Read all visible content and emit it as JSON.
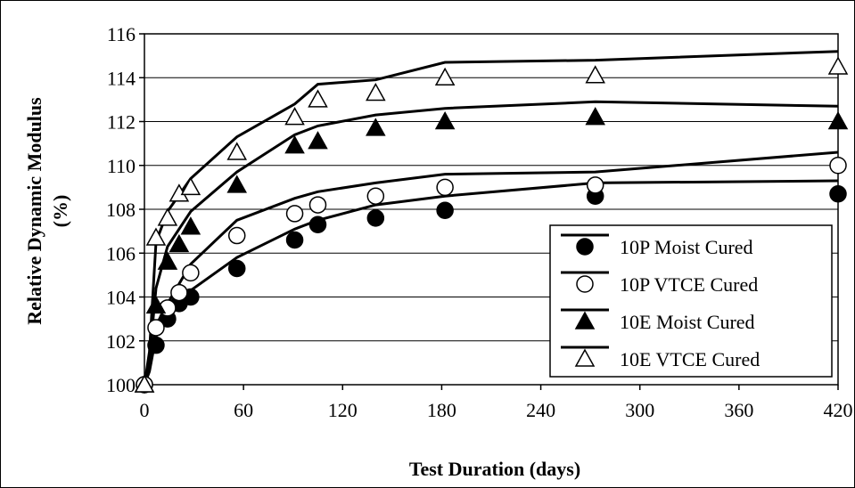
{
  "chart_data": {
    "type": "scatter",
    "title": "",
    "xlabel": "Test Duration (days)",
    "ylabel_line1": "Relative Dynamic Modulus",
    "ylabel_line2": "(%)",
    "xlim": [
      0,
      420
    ],
    "ylim": [
      100,
      116
    ],
    "xticks": [
      0,
      60,
      120,
      180,
      240,
      300,
      360,
      420
    ],
    "yticks": [
      100,
      102,
      104,
      106,
      108,
      110,
      112,
      114,
      116
    ],
    "grid": "horizontal",
    "legend_position": "bottom-right",
    "series": [
      {
        "name": "10P Moist Cured",
        "marker": "circle-filled",
        "points": [
          [
            0,
            100.0
          ],
          [
            7,
            101.8
          ],
          [
            14,
            103.0
          ],
          [
            21,
            103.7
          ],
          [
            28,
            104.0
          ],
          [
            56,
            105.3
          ],
          [
            91,
            106.6
          ],
          [
            105,
            107.3
          ],
          [
            140,
            107.6
          ],
          [
            182,
            107.95
          ],
          [
            273,
            108.6
          ],
          [
            420,
            108.7
          ]
        ],
        "fit": [
          [
            0,
            100.0
          ],
          [
            3,
            100.6
          ],
          [
            7,
            102.2
          ],
          [
            14,
            103.3
          ],
          [
            28,
            104.3
          ],
          [
            56,
            105.8
          ],
          [
            91,
            107.1
          ],
          [
            105,
            107.5
          ],
          [
            140,
            108.2
          ],
          [
            182,
            108.6
          ],
          [
            273,
            109.2
          ],
          [
            420,
            109.3
          ]
        ]
      },
      {
        "name": "10P VTCE Cured",
        "marker": "circle-open",
        "points": [
          [
            0,
            100.0
          ],
          [
            7,
            102.6
          ],
          [
            14,
            103.5
          ],
          [
            21,
            104.2
          ],
          [
            28,
            105.1
          ],
          [
            56,
            106.8
          ],
          [
            91,
            107.8
          ],
          [
            105,
            108.2
          ],
          [
            140,
            108.6
          ],
          [
            182,
            109.0
          ],
          [
            273,
            109.1
          ],
          [
            420,
            110.0
          ]
        ],
        "fit": [
          [
            0,
            100.0
          ],
          [
            3,
            100.9
          ],
          [
            7,
            102.7
          ],
          [
            14,
            103.7
          ],
          [
            28,
            105.5
          ],
          [
            56,
            107.5
          ],
          [
            91,
            108.5
          ],
          [
            105,
            108.8
          ],
          [
            140,
            109.2
          ],
          [
            182,
            109.6
          ],
          [
            273,
            109.7
          ],
          [
            420,
            110.6
          ]
        ]
      },
      {
        "name": "10E Moist Cured",
        "marker": "triangle-filled",
        "points": [
          [
            0,
            100.0
          ],
          [
            7,
            103.6
          ],
          [
            14,
            105.6
          ],
          [
            21,
            106.4
          ],
          [
            28,
            107.2
          ],
          [
            56,
            109.1
          ],
          [
            91,
            110.9
          ],
          [
            105,
            111.1
          ],
          [
            140,
            111.7
          ],
          [
            182,
            112.0
          ],
          [
            273,
            112.2
          ],
          [
            420,
            112.0
          ]
        ],
        "fit": [
          [
            0,
            100.0
          ],
          [
            3,
            101.2
          ],
          [
            7,
            104.4
          ],
          [
            14,
            106.3
          ],
          [
            28,
            107.9
          ],
          [
            56,
            109.7
          ],
          [
            91,
            111.4
          ],
          [
            105,
            111.8
          ],
          [
            140,
            112.3
          ],
          [
            182,
            112.6
          ],
          [
            273,
            112.9
          ],
          [
            420,
            112.7
          ]
        ]
      },
      {
        "name": "10E VTCE Cured",
        "marker": "triangle-open",
        "points": [
          [
            0,
            100.0
          ],
          [
            7,
            106.7
          ],
          [
            14,
            107.6
          ],
          [
            21,
            108.7
          ],
          [
            28,
            109.0
          ],
          [
            56,
            110.6
          ],
          [
            91,
            112.2
          ],
          [
            105,
            113.0
          ],
          [
            140,
            113.3
          ],
          [
            182,
            114.0
          ],
          [
            273,
            114.1
          ],
          [
            420,
            114.5
          ]
        ],
        "fit": [
          [
            0,
            100.0
          ],
          [
            3,
            101.5
          ],
          [
            7,
            106.5
          ],
          [
            14,
            107.9
          ],
          [
            28,
            109.4
          ],
          [
            56,
            111.3
          ],
          [
            91,
            112.8
          ],
          [
            105,
            113.7
          ],
          [
            140,
            113.9
          ],
          [
            182,
            114.7
          ],
          [
            273,
            114.8
          ],
          [
            420,
            115.2
          ]
        ]
      }
    ]
  }
}
